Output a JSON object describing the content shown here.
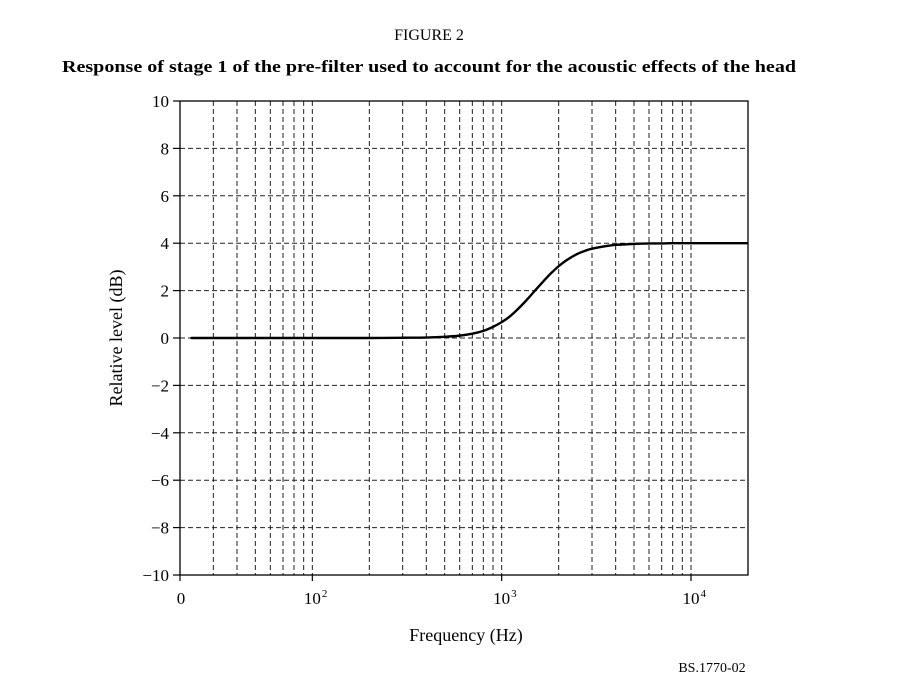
{
  "figure": {
    "label": "FIGURE 2",
    "reference": "BS.1770-02"
  },
  "chart_data": {
    "type": "line",
    "title": "Response of stage 1 of the pre-filter used to account for the acoustic effects of the head",
    "xlabel": "Frequency (Hz)",
    "ylabel": "Relative level (dB)",
    "x_scale": "log",
    "xlim": [
      20,
      20000
    ],
    "ylim": [
      -10,
      10
    ],
    "grid": true,
    "grid_style": "dashed",
    "legend": "none",
    "line_color": "#000000",
    "x_ticks": [
      {
        "value": 20,
        "label": "0"
      },
      {
        "value": 100,
        "label": "10",
        "sup": "2"
      },
      {
        "value": 1000,
        "label": "10",
        "sup": "3"
      },
      {
        "value": 10000,
        "label": "10",
        "sup": "4"
      }
    ],
    "y_ticks": [
      {
        "value": 10,
        "label": "10"
      },
      {
        "value": 8,
        "label": "8"
      },
      {
        "value": 6,
        "label": "6"
      },
      {
        "value": 4,
        "label": "4"
      },
      {
        "value": 2,
        "label": "2"
      },
      {
        "value": 0,
        "label": "0"
      },
      {
        "value": -2,
        "label": "−2"
      },
      {
        "value": -4,
        "label": "−4"
      },
      {
        "value": -6,
        "label": "−6"
      },
      {
        "value": -8,
        "label": "−8"
      },
      {
        "value": -10,
        "label": "−10"
      }
    ],
    "series": [
      {
        "x": [
          23,
          30,
          50,
          100,
          200,
          300,
          400,
          500,
          600,
          700,
          800,
          900,
          1000,
          1100,
          1200,
          1300,
          1400,
          1500,
          1600,
          1700,
          1800,
          1900,
          2000,
          2200,
          2500,
          2800,
          3000,
          3500,
          4000,
          4500,
          5000,
          6000,
          7000,
          8000,
          10000,
          15000,
          20000
        ],
        "y": [
          0,
          0,
          0,
          0,
          0,
          0.01,
          0.02,
          0.05,
          0.1,
          0.18,
          0.3,
          0.47,
          0.67,
          0.9,
          1.17,
          1.45,
          1.73,
          2.0,
          2.25,
          2.48,
          2.69,
          2.87,
          3.03,
          3.28,
          3.54,
          3.7,
          3.77,
          3.87,
          3.93,
          3.95,
          3.97,
          3.99,
          3.99,
          4.0,
          4.0,
          4.0,
          4.0
        ]
      }
    ]
  }
}
